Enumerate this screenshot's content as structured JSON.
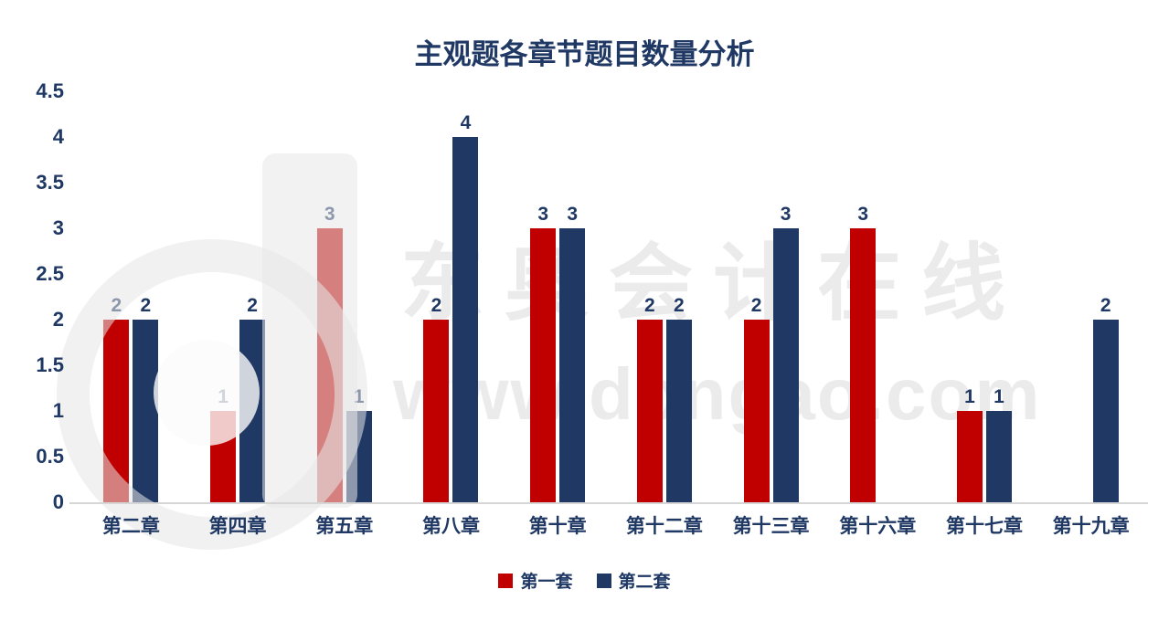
{
  "watermark": {
    "line1": "东奥会计在线",
    "line2": "www.dongao.com"
  },
  "chart_data": {
    "type": "bar",
    "title": "主观题各章节题目数量分析",
    "categories": [
      "第二章",
      "第四章",
      "第五章",
      "第八章",
      "第十章",
      "第十二章",
      "第十三章",
      "第十六章",
      "第十七章",
      "第十九章"
    ],
    "series": [
      {
        "name": "第一套",
        "color": "#C00000",
        "values": [
          2,
          1,
          3,
          2,
          3,
          2,
          2,
          3,
          1,
          null
        ]
      },
      {
        "name": "第二套",
        "color": "#1F3864",
        "values": [
          2,
          2,
          1,
          4,
          3,
          2,
          3,
          null,
          1,
          2
        ]
      }
    ],
    "ylim": [
      0,
      4.5
    ],
    "yticks": [
      0,
      0.5,
      1,
      1.5,
      2,
      2.5,
      3,
      3.5,
      4,
      4.5
    ],
    "grid": false,
    "legend_position": "bottom",
    "bar_value_labels": true
  }
}
